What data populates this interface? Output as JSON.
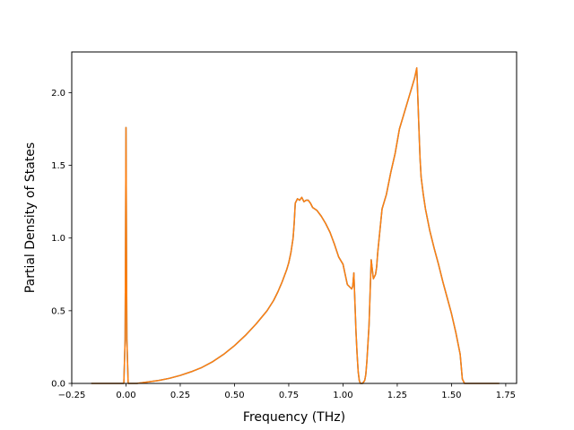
{
  "chart_data": {
    "type": "line",
    "title": "",
    "xlabel": "Frequency (THz)",
    "ylabel": "Partial Density of States",
    "xlim": [
      -0.25,
      1.8
    ],
    "ylim": [
      0.0,
      2.28
    ],
    "xticks": [
      -0.25,
      0.0,
      0.25,
      0.5,
      0.75,
      1.0,
      1.25,
      1.5,
      1.75
    ],
    "xtick_labels": [
      "−0.25",
      "0.00",
      "0.25",
      "0.50",
      "0.75",
      "1.00",
      "1.25",
      "1.50",
      "1.75"
    ],
    "yticks": [
      0.0,
      0.5,
      1.0,
      1.5,
      2.0
    ],
    "ytick_labels": [
      "0.0",
      "0.5",
      "1.0",
      "1.5",
      "2.0"
    ],
    "grid": false,
    "legend": "none",
    "series": [
      {
        "color": "#1f77b4",
        "x": [
          -0.16,
          -0.01,
          -0.004,
          0.0,
          0.004,
          0.01,
          0.05,
          0.1,
          0.15,
          0.2,
          0.25,
          0.3,
          0.35,
          0.4,
          0.45,
          0.5,
          0.55,
          0.6,
          0.65,
          0.68,
          0.7,
          0.72,
          0.74,
          0.75,
          0.76,
          0.77,
          0.775,
          0.78,
          0.79,
          0.8,
          0.81,
          0.82,
          0.83,
          0.84,
          0.85,
          0.86,
          0.87,
          0.88,
          0.9,
          0.92,
          0.94,
          0.96,
          0.98,
          1.0,
          1.02,
          1.04,
          1.045,
          1.05,
          1.06,
          1.065,
          1.07,
          1.075,
          1.08,
          1.09,
          1.1,
          1.105,
          1.11,
          1.12,
          1.13,
          1.14,
          1.15,
          1.155,
          1.16,
          1.17,
          1.18,
          1.2,
          1.22,
          1.24,
          1.26,
          1.28,
          1.3,
          1.31,
          1.32,
          1.33,
          1.34,
          1.35,
          1.355,
          1.36,
          1.37,
          1.38,
          1.4,
          1.42,
          1.44,
          1.46,
          1.48,
          1.5,
          1.52,
          1.54,
          1.55,
          1.56,
          1.565,
          1.57,
          1.58,
          1.6,
          1.65,
          1.72
        ],
        "y": [
          0.0,
          0.0,
          0.3,
          1.76,
          0.3,
          0.0,
          0.0,
          0.01,
          0.02,
          0.035,
          0.055,
          0.08,
          0.11,
          0.15,
          0.2,
          0.26,
          0.33,
          0.41,
          0.5,
          0.57,
          0.63,
          0.7,
          0.78,
          0.83,
          0.9,
          1.0,
          1.1,
          1.24,
          1.27,
          1.26,
          1.28,
          1.25,
          1.26,
          1.26,
          1.24,
          1.21,
          1.2,
          1.19,
          1.15,
          1.1,
          1.04,
          0.96,
          0.87,
          0.82,
          0.68,
          0.65,
          0.67,
          0.76,
          0.35,
          0.2,
          0.08,
          0.02,
          0.0,
          0.0,
          0.02,
          0.06,
          0.15,
          0.4,
          0.85,
          0.72,
          0.75,
          0.8,
          0.9,
          1.05,
          1.2,
          1.3,
          1.45,
          1.58,
          1.75,
          1.85,
          1.95,
          2.0,
          2.05,
          2.1,
          2.17,
          1.75,
          1.55,
          1.42,
          1.3,
          1.2,
          1.05,
          0.93,
          0.82,
          0.7,
          0.59,
          0.48,
          0.35,
          0.2,
          0.03,
          0.0,
          0.0,
          0.0,
          0.0,
          0.0,
          0.0,
          0.0
        ]
      },
      {
        "color": "#ff7f0e",
        "x": [
          -0.16,
          -0.01,
          -0.004,
          0.0,
          0.004,
          0.01,
          0.05,
          0.1,
          0.15,
          0.2,
          0.25,
          0.3,
          0.35,
          0.4,
          0.45,
          0.5,
          0.55,
          0.6,
          0.65,
          0.68,
          0.7,
          0.72,
          0.74,
          0.75,
          0.76,
          0.77,
          0.775,
          0.78,
          0.79,
          0.8,
          0.81,
          0.82,
          0.83,
          0.84,
          0.85,
          0.86,
          0.87,
          0.88,
          0.9,
          0.92,
          0.94,
          0.96,
          0.98,
          1.0,
          1.02,
          1.04,
          1.045,
          1.05,
          1.06,
          1.065,
          1.07,
          1.075,
          1.08,
          1.09,
          1.1,
          1.105,
          1.11,
          1.12,
          1.13,
          1.14,
          1.15,
          1.155,
          1.16,
          1.17,
          1.18,
          1.2,
          1.22,
          1.24,
          1.26,
          1.28,
          1.3,
          1.31,
          1.32,
          1.33,
          1.34,
          1.35,
          1.355,
          1.36,
          1.37,
          1.38,
          1.4,
          1.42,
          1.44,
          1.46,
          1.48,
          1.5,
          1.52,
          1.54,
          1.55,
          1.56,
          1.565,
          1.57,
          1.58,
          1.6,
          1.65,
          1.72
        ],
        "y": [
          0.0,
          0.0,
          0.3,
          1.76,
          0.3,
          0.0,
          0.0,
          0.01,
          0.02,
          0.035,
          0.055,
          0.08,
          0.11,
          0.15,
          0.2,
          0.26,
          0.33,
          0.41,
          0.5,
          0.57,
          0.63,
          0.7,
          0.78,
          0.83,
          0.9,
          1.0,
          1.1,
          1.24,
          1.27,
          1.26,
          1.28,
          1.25,
          1.26,
          1.26,
          1.24,
          1.21,
          1.2,
          1.19,
          1.15,
          1.1,
          1.04,
          0.96,
          0.87,
          0.82,
          0.68,
          0.65,
          0.67,
          0.76,
          0.35,
          0.2,
          0.08,
          0.02,
          0.0,
          0.0,
          0.02,
          0.06,
          0.15,
          0.4,
          0.85,
          0.72,
          0.75,
          0.8,
          0.9,
          1.05,
          1.2,
          1.3,
          1.45,
          1.58,
          1.75,
          1.85,
          1.95,
          2.0,
          2.05,
          2.1,
          2.17,
          1.75,
          1.55,
          1.42,
          1.3,
          1.2,
          1.05,
          0.93,
          0.82,
          0.7,
          0.59,
          0.48,
          0.35,
          0.2,
          0.03,
          0.0,
          0.0,
          0.0,
          0.0,
          0.0,
          0.0,
          0.0
        ]
      }
    ]
  }
}
